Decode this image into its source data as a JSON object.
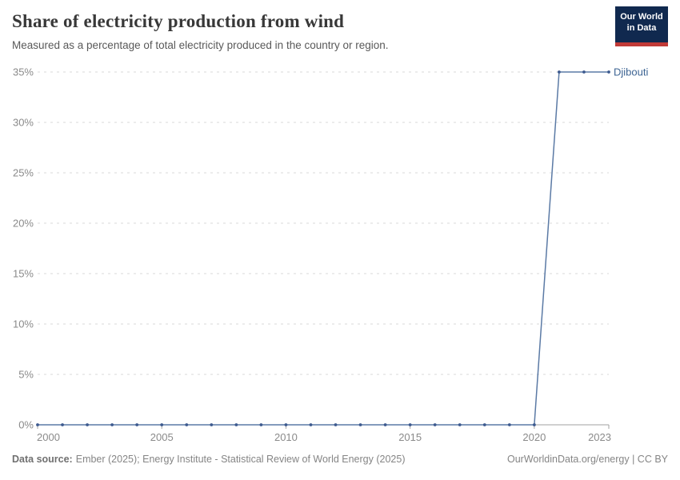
{
  "header": {
    "title": "Share of electricity production from wind",
    "subtitle": "Measured as a percentage of total electricity produced in the country or region.",
    "logo": {
      "line1": "Our World",
      "line2": "in Data"
    }
  },
  "chart_data": {
    "type": "line",
    "title": "Share of electricity production from wind",
    "xlabel": "",
    "ylabel": "",
    "xlim": [
      2000,
      2023
    ],
    "ylim": [
      0,
      35
    ],
    "x_ticks": [
      2000,
      2005,
      2010,
      2015,
      2020,
      2023
    ],
    "y_ticks": [
      0,
      5,
      10,
      15,
      20,
      25,
      30,
      35
    ],
    "y_tick_suffix": "%",
    "grid": "horizontal-dashed",
    "legend_position": "end-of-line-label",
    "x": [
      2000,
      2001,
      2002,
      2003,
      2004,
      2005,
      2006,
      2007,
      2008,
      2009,
      2010,
      2011,
      2012,
      2013,
      2014,
      2015,
      2016,
      2017,
      2018,
      2019,
      2020,
      2021,
      2022,
      2023
    ],
    "series": [
      {
        "name": "Djibouti",
        "color": "#5b7aa5",
        "dot_color": "#3d5a8f",
        "label_color": "#3d6493",
        "values": [
          0,
          0,
          0,
          0,
          0,
          0,
          0,
          0,
          0,
          0,
          0,
          0,
          0,
          0,
          0,
          0,
          0,
          0,
          0,
          0,
          0,
          35,
          35,
          35
        ]
      }
    ]
  },
  "footer": {
    "datasource_label": "Data source:",
    "datasource_text": "Ember (2025); Energy Institute - Statistical Review of World Energy (2025)",
    "link": "OurWorldinData.org/energy | CC BY"
  },
  "colors": {
    "accent_line": "#5b7aa5",
    "grid": "#d8d8d8",
    "axis": "#a1a1a1",
    "tick_label": "#8a8a8a",
    "title": "#383838",
    "subtitle": "#595959",
    "footer": "#858585",
    "logo_bg": "#10294f",
    "logo_red": "#c13a37"
  }
}
